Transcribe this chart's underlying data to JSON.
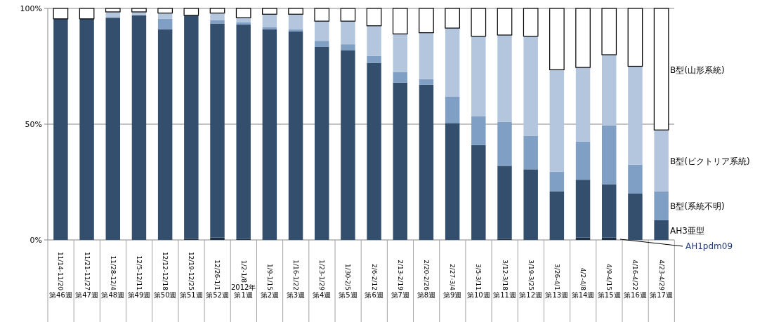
{
  "chart_data": {
    "type": "bar",
    "stacked": true,
    "grid": "y",
    "legend": false,
    "categories": [
      "11/14-11/20\n第46週",
      "11/21-11/27\n第47週",
      "11/28-12/4\n第48週",
      "12/5-12/11\n第49週",
      "12/12-12/18\n第50週",
      "12/19-12/25\n第51週",
      "12/26-1/1\n第52週",
      "1/2-1/8\n2012年第1週",
      "1/9-1/15\n第2週",
      "1/16-1/22\n第3週",
      "1/23-1/29\n第4週",
      "1/30-2/5\n第5週",
      "2/6-2/12\n第6週",
      "2/13-2/19\n第7週",
      "2/20-2/26\n第8週",
      "2/27-3/4\n第9週",
      "3/5-3/11\n第10週",
      "3/12-3/18\n第11週",
      "3/19-3/25\n第12週",
      "3/26-4/1\n第13週",
      "4/2-4/8\n第14週",
      "4/9-4/15\n第15週",
      "4/16-4/22\n第16週",
      "4/23-4/29\n第17週"
    ],
    "ylim": [
      0,
      100
    ],
    "yticks": [
      {
        "value": 0,
        "label": "0%"
      },
      {
        "value": 50,
        "label": "50%"
      },
      {
        "value": 100,
        "label": "100%"
      }
    ],
    "series": [
      {
        "name": "AH1pdm09",
        "color": "#1c2f45",
        "values": [
          0,
          0,
          0,
          0,
          0,
          0.5,
          1,
          0.5,
          0,
          0,
          0,
          0,
          0,
          0,
          0,
          0,
          0,
          0.5,
          0,
          0,
          1,
          1,
          0,
          0
        ]
      },
      {
        "name": "AH3亜型",
        "color": "#344f6e",
        "values": [
          95.5,
          95.5,
          96,
          97,
          91,
          96.5,
          92.5,
          92.5,
          91,
          90,
          83.5,
          82,
          76.5,
          68,
          67,
          50.5,
          41,
          31.5,
          30.5,
          21,
          25,
          23,
          20,
          8.5
        ]
      },
      {
        "name": "B型(系統不明)",
        "color": "#7f9fc4",
        "values": [
          0,
          0,
          0,
          0,
          4.5,
          0,
          1.5,
          1,
          1,
          1,
          2.5,
          2.5,
          3,
          4.5,
          2.5,
          11.5,
          12.5,
          19,
          14.5,
          8.5,
          16.5,
          25.5,
          12.5,
          12.5
        ]
      },
      {
        "name": "B型(ビクトリア系統)",
        "color": "#b3c6dd",
        "values": [
          0,
          0,
          2.5,
          1.5,
          2.5,
          0,
          3,
          2,
          5.5,
          6.5,
          8.5,
          10,
          13,
          16.5,
          20,
          29.5,
          34.5,
          37.5,
          43,
          44,
          32,
          30.5,
          42.5,
          26.5
        ]
      },
      {
        "name": "B型(山形系統)",
        "color": "#ffffff",
        "values": [
          4.5,
          4.5,
          1.5,
          1.5,
          2,
          3,
          2,
          4,
          2.5,
          2.5,
          5.5,
          5.5,
          7.5,
          11,
          10.5,
          8.5,
          12,
          11.5,
          12,
          26.5,
          25.5,
          20,
          25,
          52.5
        ]
      }
    ]
  }
}
